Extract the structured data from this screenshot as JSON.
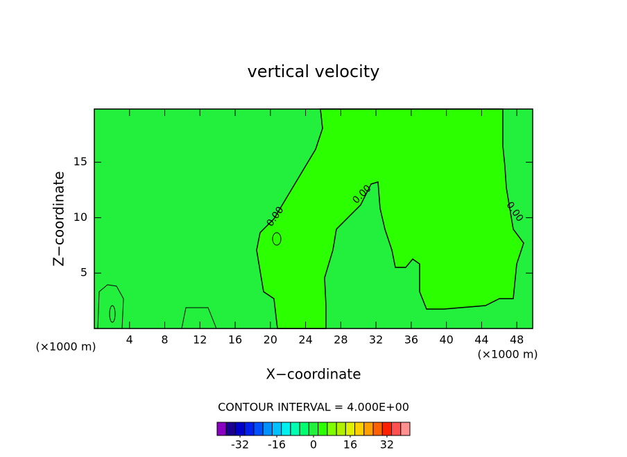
{
  "chart_data": {
    "type": "contour",
    "title": "vertical velocity",
    "xlabel": "X−coordinate",
    "ylabel": "Z−coordinate",
    "x_unit_label": "(×1000 m)",
    "y_unit_label": "(×1000 m)",
    "xlim": [
      0,
      49.8
    ],
    "ylim": [
      0,
      19.8
    ],
    "xticks": [
      4,
      8,
      12,
      16,
      20,
      24,
      28,
      32,
      36,
      40,
      44,
      48
    ],
    "yticks": [
      5,
      10,
      15
    ],
    "region_colors": [
      "#22f03c",
      "#2cff00"
    ],
    "contour_labels": [
      "0.00",
      "0.00",
      "0.00"
    ],
    "contour_interval": "CONTOUR INTERVAL = 4.000E+00",
    "colorbar": {
      "lim": [
        -42,
        42
      ],
      "ticks": [
        -32,
        -16,
        0,
        16,
        32
      ],
      "colors": [
        "#8a00c0",
        "#1a0090",
        "#0000c8",
        "#0020f0",
        "#0050ff",
        "#0090ff",
        "#00c0ff",
        "#00f0f0",
        "#00ffb0",
        "#00ff70",
        "#22f03c",
        "#2cff00",
        "#80ff00",
        "#b0f000",
        "#e0f000",
        "#ffd000",
        "#ffa000",
        "#ff6000",
        "#ff2000",
        "#ff5050",
        "#ff9090"
      ]
    }
  }
}
